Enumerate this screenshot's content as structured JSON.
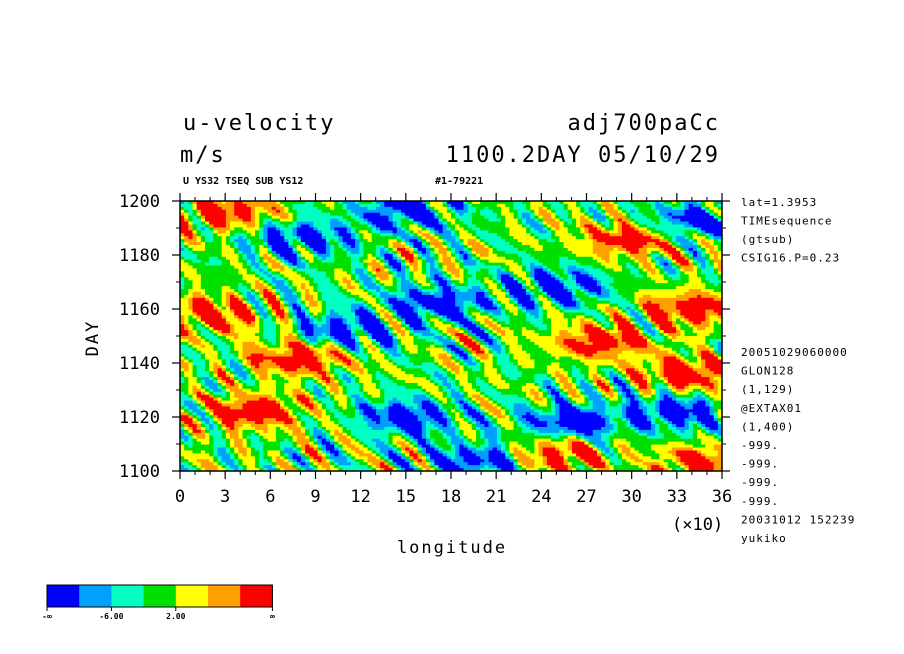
{
  "header": {
    "title_left": "u-velocity",
    "title_right": "adj700paCc",
    "units": "m/s",
    "time_label": "1100.2DAY 05/10/29",
    "subtitle": "U YS32 TSEQ SUB YS12",
    "run_id": "#1-79221"
  },
  "info_top": [
    "lat=1.3953",
    "TIMEsequence",
    "(gtsub)",
    "CSIG16.P=0.23"
  ],
  "info_bottom": [
    "20051029060000",
    "GLON128",
    "(1,129)",
    "@EXTAX01",
    "(1,400)",
    "-999.",
    "-999.",
    "-999.",
    "-999.",
    "20031012 152239",
    "yukiko"
  ],
  "colors": {
    "levels": [
      "#0000ff",
      "#00a0ff",
      "#00ffc0",
      "#00e000",
      "#ffff00",
      "#ffa000",
      "#ff0000"
    ]
  },
  "colorbar": {
    "labels": [
      "-∞",
      "-6.00",
      "2.00",
      "∞"
    ]
  },
  "chart_data": {
    "type": "heatmap",
    "title": "u-velocity",
    "xlabel": "longitude",
    "ylabel": "DAY",
    "x_multiplier": "(×10)",
    "x_ticks": [
      0,
      3,
      6,
      9,
      12,
      15,
      18,
      21,
      24,
      27,
      30,
      33,
      36
    ],
    "y_ticks": [
      1100,
      1120,
      1140,
      1160,
      1180,
      1200
    ],
    "xlim": [
      0,
      36
    ],
    "ylim": [
      1100,
      1200
    ],
    "colorbar_bounds": [
      "-∞",
      -6.0,
      2.0,
      "∞"
    ],
    "features": [
      {
        "lon": 11,
        "day": 1152,
        "level": 0
      },
      {
        "lon": 17,
        "day": 1162,
        "level": 0
      },
      {
        "lon": 15,
        "day": 1196,
        "level": 0
      },
      {
        "lon": 8,
        "day": 1186,
        "level": 0
      },
      {
        "lon": 15,
        "day": 1120,
        "level": 0
      },
      {
        "lon": 26,
        "day": 1118,
        "level": 0
      },
      {
        "lon": 25,
        "day": 1168,
        "level": 0
      },
      {
        "lon": 34,
        "day": 1192,
        "level": 0
      },
      {
        "lon": 33,
        "day": 1122,
        "level": 0
      },
      {
        "lon": 20,
        "day": 1104,
        "level": 0
      },
      {
        "lon": 34,
        "day": 1160,
        "level": 6
      },
      {
        "lon": 28,
        "day": 1148,
        "level": 6
      },
      {
        "lon": 30,
        "day": 1186,
        "level": 6
      },
      {
        "lon": 34,
        "day": 1136,
        "level": 6
      },
      {
        "lon": 2,
        "day": 1158,
        "level": 6
      },
      {
        "lon": 3,
        "day": 1196,
        "level": 6
      },
      {
        "lon": 5,
        "day": 1122,
        "level": 6
      },
      {
        "lon": 8,
        "day": 1142,
        "level": 6
      },
      {
        "lon": 25,
        "day": 1106,
        "level": 6
      },
      {
        "lon": 35,
        "day": 1103,
        "level": 6
      }
    ]
  }
}
